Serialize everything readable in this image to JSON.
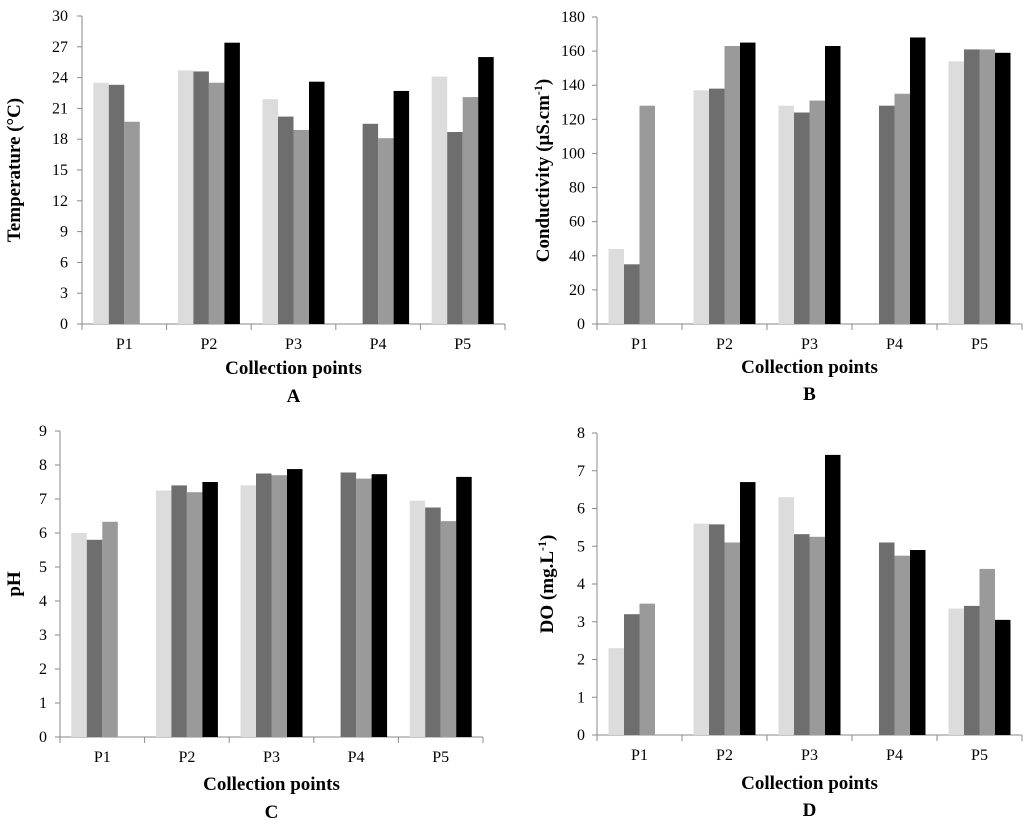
{
  "figure": {
    "series_colors": [
      "#dcdcdc",
      "#6e6e6e",
      "#9a9a9a",
      "#000000"
    ]
  },
  "chart_data": [
    {
      "type": "bar",
      "panel_label": "A",
      "categories": [
        "P1",
        "P2",
        "P3",
        "P4",
        "P5"
      ],
      "ylabel": "Temperature (°C)",
      "xlabel": "Collection points",
      "ylim": [
        0,
        30
      ],
      "yticks": [
        0,
        3,
        6,
        9,
        12,
        15,
        18,
        21,
        24,
        27,
        30
      ],
      "series": [
        {
          "values": [
            23.5,
            24.7,
            21.9,
            null,
            24.1
          ]
        },
        {
          "values": [
            23.3,
            24.6,
            20.2,
            19.5,
            18.7
          ]
        },
        {
          "values": [
            19.7,
            23.5,
            18.9,
            18.1,
            22.1
          ]
        },
        {
          "values": [
            null,
            27.4,
            23.6,
            22.7,
            26.0
          ]
        }
      ]
    },
    {
      "type": "bar",
      "panel_label": "B",
      "categories": [
        "P1",
        "P2",
        "P3",
        "P4",
        "P5"
      ],
      "ylabel": "Conductivity (µS.cm",
      "ylabel_sup": "-1",
      "ylabel_close": ")",
      "xlabel": "Collection points",
      "ylim": [
        0,
        180
      ],
      "yticks": [
        0,
        20,
        40,
        60,
        80,
        100,
        120,
        140,
        160,
        180
      ],
      "series": [
        {
          "values": [
            44,
            137,
            128,
            null,
            154
          ]
        },
        {
          "values": [
            35,
            138,
            124,
            128,
            161
          ]
        },
        {
          "values": [
            128,
            163,
            131,
            135,
            161
          ]
        },
        {
          "values": [
            null,
            165,
            163,
            168,
            159
          ]
        }
      ]
    },
    {
      "type": "bar",
      "panel_label": "C",
      "categories": [
        "P1",
        "P2",
        "P3",
        "P4",
        "P5"
      ],
      "ylabel": "pH",
      "xlabel": "Collection points",
      "ylim": [
        0,
        9
      ],
      "yticks": [
        0,
        1,
        2,
        3,
        4,
        5,
        6,
        7,
        8,
        9
      ],
      "series": [
        {
          "values": [
            6.0,
            7.25,
            7.4,
            null,
            6.95
          ]
        },
        {
          "values": [
            5.8,
            7.4,
            7.75,
            7.78,
            6.75
          ]
        },
        {
          "values": [
            6.33,
            7.2,
            7.7,
            7.6,
            6.35
          ]
        },
        {
          "values": [
            null,
            7.5,
            7.88,
            7.73,
            7.65
          ]
        }
      ]
    },
    {
      "type": "bar",
      "panel_label": "D",
      "categories": [
        "P1",
        "P2",
        "P3",
        "P4",
        "P5"
      ],
      "ylabel": "DO  (mg.L",
      "ylabel_sup": "-1",
      "ylabel_close": ")",
      "xlabel": "Collection points",
      "ylim": [
        0,
        8
      ],
      "yticks": [
        0,
        1,
        2,
        3,
        4,
        5,
        6,
        7,
        8
      ],
      "series": [
        {
          "values": [
            2.3,
            5.6,
            6.3,
            null,
            3.35
          ]
        },
        {
          "values": [
            3.2,
            5.58,
            5.32,
            5.1,
            3.42
          ]
        },
        {
          "values": [
            3.48,
            5.1,
            5.25,
            4.75,
            4.4
          ]
        },
        {
          "values": [
            null,
            6.7,
            7.42,
            4.9,
            3.05
          ]
        }
      ]
    }
  ]
}
